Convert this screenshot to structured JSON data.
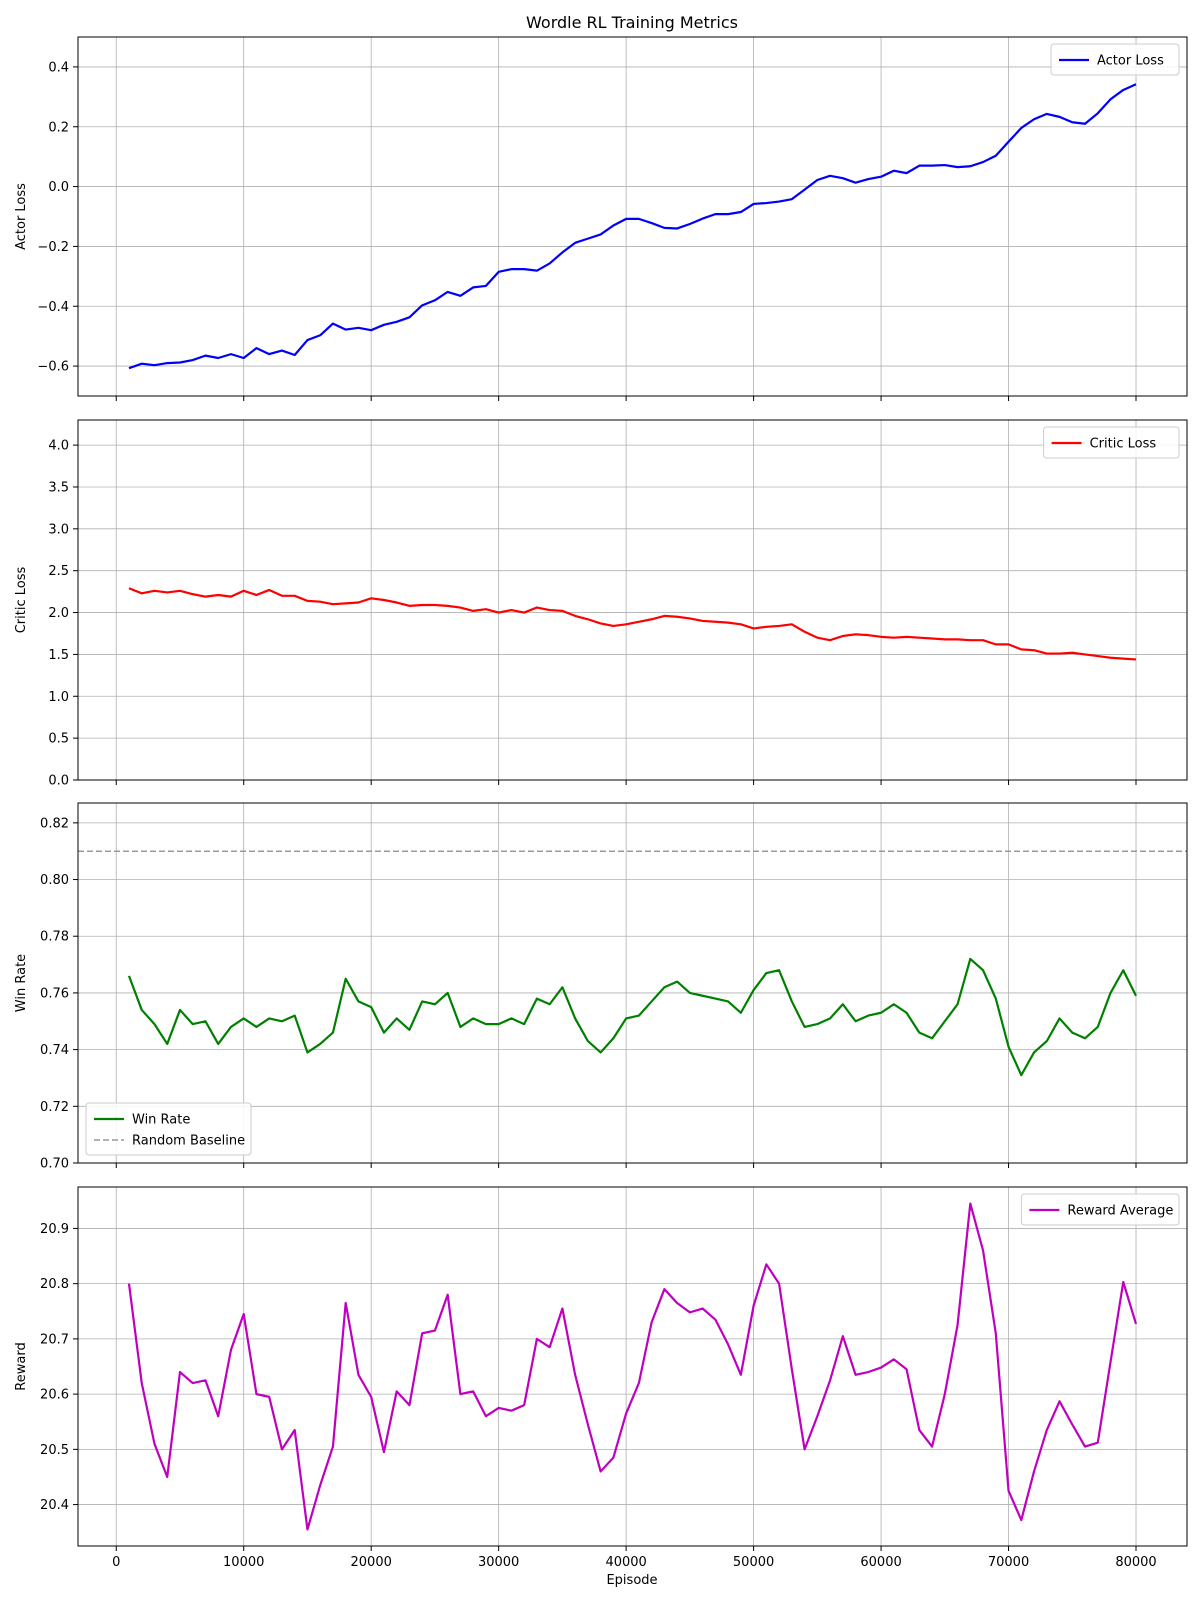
{
  "figure_title": "Wordle RL Training Metrics",
  "x_axis_label": "Episode",
  "chart_data": [
    {
      "type": "line",
      "ylabel": "Actor Loss",
      "xlim": [
        -3000,
        84000
      ],
      "ylim": [
        -0.7,
        0.5
      ],
      "xticks": [
        0,
        10000,
        20000,
        30000,
        40000,
        50000,
        60000,
        70000,
        80000
      ],
      "yticks": [
        -0.6,
        -0.4,
        -0.2,
        0.0,
        0.2,
        0.4
      ],
      "ytick_labels": [
        "−0.6",
        "−0.4",
        "−0.2",
        "0.0",
        "0.2",
        "0.4"
      ],
      "grid": true,
      "legend_loc": "top-right",
      "series": [
        {
          "name": "Actor Loss",
          "color": "#0000ff",
          "x_start": 1000,
          "x_step": 1000,
          "values": [
            -0.607,
            -0.592,
            -0.597,
            -0.59,
            -0.588,
            -0.58,
            -0.565,
            -0.573,
            -0.56,
            -0.573,
            -0.54,
            -0.56,
            -0.548,
            -0.563,
            -0.513,
            -0.497,
            -0.458,
            -0.478,
            -0.472,
            -0.48,
            -0.462,
            -0.452,
            -0.437,
            -0.397,
            -0.38,
            -0.352,
            -0.365,
            -0.337,
            -0.332,
            -0.285,
            -0.276,
            -0.276,
            -0.281,
            -0.257,
            -0.22,
            -0.188,
            -0.174,
            -0.16,
            -0.13,
            -0.108,
            -0.108,
            -0.122,
            -0.138,
            -0.14,
            -0.125,
            -0.107,
            -0.092,
            -0.092,
            -0.085,
            -0.058,
            -0.055,
            -0.05,
            -0.042,
            -0.01,
            0.022,
            0.036,
            0.028,
            0.013,
            0.025,
            0.033,
            0.053,
            0.045,
            0.07,
            0.07,
            0.072,
            0.065,
            0.068,
            0.082,
            0.103,
            0.15,
            0.196,
            0.225,
            0.243,
            0.233,
            0.215,
            0.21,
            0.245,
            0.292,
            0.323,
            0.342
          ]
        }
      ]
    },
    {
      "type": "line",
      "ylabel": "Critic Loss",
      "xlim": [
        -3000,
        84000
      ],
      "ylim": [
        0,
        4.3
      ],
      "xticks": [
        0,
        10000,
        20000,
        30000,
        40000,
        50000,
        60000,
        70000,
        80000
      ],
      "yticks": [
        0.0,
        0.5,
        1.0,
        1.5,
        2.0,
        2.5,
        3.0,
        3.5,
        4.0
      ],
      "ytick_labels": [
        "0.0",
        "0.5",
        "1.0",
        "1.5",
        "2.0",
        "2.5",
        "3.0",
        "3.5",
        "4.0"
      ],
      "grid": true,
      "legend_loc": "top-right",
      "series": [
        {
          "name": "Critic Loss",
          "color": "#ff0000",
          "x_start": 1000,
          "x_step": 1000,
          "values": [
            2.29,
            2.23,
            2.26,
            2.24,
            2.26,
            2.22,
            2.19,
            2.21,
            2.19,
            2.26,
            2.21,
            2.27,
            2.2,
            2.2,
            2.14,
            2.13,
            2.1,
            2.11,
            2.12,
            2.17,
            2.15,
            2.12,
            2.08,
            2.09,
            2.09,
            2.08,
            2.06,
            2.02,
            2.04,
            2.0,
            2.03,
            2.0,
            2.06,
            2.03,
            2.02,
            1.96,
            1.92,
            1.87,
            1.84,
            1.86,
            1.89,
            1.92,
            1.96,
            1.95,
            1.93,
            1.9,
            1.89,
            1.88,
            1.86,
            1.81,
            1.83,
            1.84,
            1.86,
            1.77,
            1.7,
            1.67,
            1.72,
            1.74,
            1.73,
            1.71,
            1.7,
            1.71,
            1.7,
            1.69,
            1.68,
            1.68,
            1.67,
            1.67,
            1.62,
            1.62,
            1.56,
            1.55,
            1.51,
            1.51,
            1.52,
            1.5,
            1.48,
            1.46,
            1.45,
            1.44
          ]
        }
      ]
    },
    {
      "type": "line",
      "ylabel": "Win Rate",
      "xlim": [
        -3000,
        84000
      ],
      "ylim": [
        0.7,
        0.827
      ],
      "xticks": [
        0,
        10000,
        20000,
        30000,
        40000,
        50000,
        60000,
        70000,
        80000
      ],
      "yticks": [
        0.7,
        0.72,
        0.74,
        0.76,
        0.78,
        0.8,
        0.82
      ],
      "ytick_labels": [
        "0.70",
        "0.72",
        "0.74",
        "0.76",
        "0.78",
        "0.80",
        "0.82"
      ],
      "grid": true,
      "legend_loc": "bottom-left",
      "hline": {
        "name": "Random Baseline",
        "y": 0.81,
        "color": "#999999"
      },
      "series": [
        {
          "name": "Win Rate",
          "color": "#008000",
          "x_start": 1000,
          "x_step": 1000,
          "values": [
            0.766,
            0.754,
            0.749,
            0.742,
            0.754,
            0.749,
            0.75,
            0.742,
            0.748,
            0.751,
            0.748,
            0.751,
            0.75,
            0.752,
            0.739,
            0.742,
            0.746,
            0.765,
            0.757,
            0.755,
            0.746,
            0.751,
            0.747,
            0.757,
            0.756,
            0.76,
            0.748,
            0.751,
            0.749,
            0.749,
            0.751,
            0.749,
            0.758,
            0.756,
            0.762,
            0.751,
            0.743,
            0.739,
            0.744,
            0.751,
            0.752,
            0.757,
            0.762,
            0.764,
            0.76,
            0.759,
            0.758,
            0.757,
            0.753,
            0.761,
            0.767,
            0.768,
            0.757,
            0.748,
            0.749,
            0.751,
            0.756,
            0.75,
            0.752,
            0.753,
            0.756,
            0.753,
            0.746,
            0.744,
            0.75,
            0.756,
            0.772,
            0.768,
            0.758,
            0.741,
            0.731,
            0.739,
            0.743,
            0.751,
            0.746,
            0.744,
            0.748,
            0.76,
            0.768,
            0.759
          ]
        }
      ]
    },
    {
      "type": "line",
      "ylabel": "Reward",
      "xlabel": "Episode",
      "xlim": [
        -3000,
        84000
      ],
      "ylim": [
        20.325,
        20.975
      ],
      "xticks": [
        0,
        10000,
        20000,
        30000,
        40000,
        50000,
        60000,
        70000,
        80000
      ],
      "xtick_labels": [
        "0",
        "10000",
        "20000",
        "30000",
        "40000",
        "50000",
        "60000",
        "70000",
        "80000"
      ],
      "yticks": [
        20.4,
        20.5,
        20.6,
        20.7,
        20.8,
        20.9
      ],
      "ytick_labels": [
        "20.4",
        "20.5",
        "20.6",
        "20.7",
        "20.8",
        "20.9"
      ],
      "grid": true,
      "legend_loc": "top-right",
      "series": [
        {
          "name": "Reward Average",
          "color": "#bf00bf",
          "x_start": 1000,
          "x_step": 1000,
          "values": [
            20.8,
            20.62,
            20.51,
            20.45,
            20.64,
            20.62,
            20.625,
            20.56,
            20.68,
            20.745,
            20.6,
            20.595,
            20.5,
            20.535,
            20.355,
            20.435,
            20.505,
            20.765,
            20.635,
            20.595,
            20.495,
            20.605,
            20.58,
            20.71,
            20.715,
            20.78,
            20.6,
            20.605,
            20.56,
            20.575,
            20.57,
            20.58,
            20.7,
            20.685,
            20.755,
            20.635,
            20.545,
            20.46,
            20.485,
            20.565,
            20.62,
            20.73,
            20.79,
            20.765,
            20.748,
            20.755,
            20.735,
            20.69,
            20.635,
            20.76,
            20.835,
            20.8,
            20.645,
            20.5,
            20.56,
            20.625,
            20.705,
            20.635,
            20.64,
            20.648,
            20.663,
            20.645,
            20.535,
            20.505,
            20.6,
            20.725,
            20.945,
            20.86,
            20.71,
            20.425,
            20.372,
            20.46,
            20.535,
            20.587,
            20.545,
            20.505,
            20.512,
            20.658,
            20.803,
            20.727
          ]
        }
      ]
    }
  ]
}
